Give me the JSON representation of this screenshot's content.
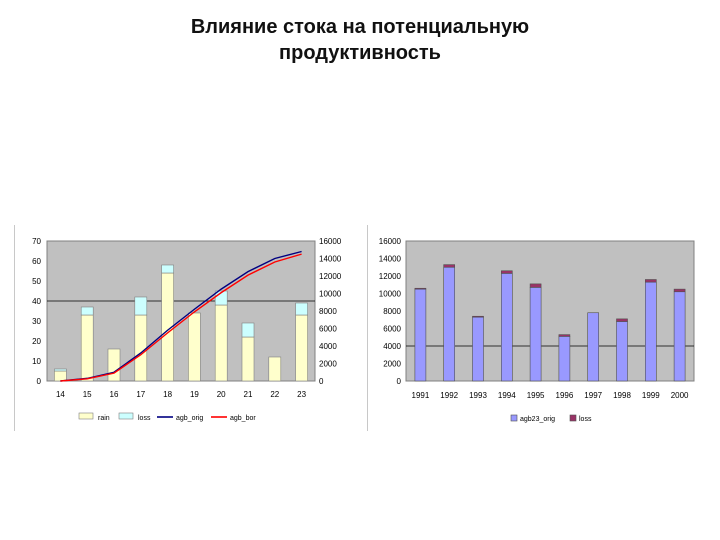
{
  "page": {
    "title_line1": "Влияние стока на потенциальную",
    "title_line2": "продуктивность"
  },
  "chart_data": [
    {
      "type": "bar",
      "subtype": "stacked bar + lines, dual y-axis",
      "categories": [
        "14",
        "15",
        "16",
        "17",
        "18",
        "19",
        "20",
        "21",
        "22",
        "23"
      ],
      "series": [
        {
          "name": "rain",
          "axis": "left",
          "kind": "stacked-bar",
          "color": "#ffffcc",
          "values": [
            5,
            33,
            16,
            33,
            54,
            34,
            38,
            22,
            12,
            33
          ]
        },
        {
          "name": "loss",
          "axis": "left",
          "kind": "stacked-bar",
          "color": "#ccffff",
          "values": [
            1,
            4,
            0,
            9,
            4,
            0,
            7,
            7,
            0,
            6
          ]
        },
        {
          "name": "agb_orig",
          "axis": "right",
          "kind": "line",
          "color": "#000080",
          "values": [
            0,
            300,
            1000,
            3200,
            5800,
            8200,
            10500,
            12500,
            14000,
            14800
          ]
        },
        {
          "name": "agb_bor",
          "axis": "right",
          "kind": "line",
          "color": "#ff0000",
          "values": [
            0,
            250,
            900,
            3000,
            5500,
            7900,
            10100,
            12100,
            13600,
            14500
          ]
        }
      ],
      "y_left": {
        "ticks": [
          "0",
          "10",
          "20",
          "30",
          "40",
          "50",
          "60",
          "70"
        ],
        "lim": [
          0,
          70
        ]
      },
      "y_right": {
        "ticks": [
          "0",
          "2000",
          "4000",
          "6000",
          "8000",
          "10000",
          "12000",
          "14000",
          "16000"
        ],
        "lim": [
          0,
          16000
        ]
      },
      "legend": {
        "placement": "bottom",
        "items": [
          "rain",
          "loss",
          "agb_orig",
          "agb_bor"
        ]
      },
      "plot_background": "#c0c0c0",
      "grid": "major horizontal at 40"
    },
    {
      "type": "bar",
      "subtype": "stacked bar",
      "categories": [
        "1991",
        "1992",
        "1993",
        "1994",
        "1995",
        "1996",
        "1997",
        "1998",
        "1999",
        "2000"
      ],
      "series": [
        {
          "name": "agb23_orig",
          "color": "#9999ff",
          "values": [
            10500,
            13000,
            7300,
            12300,
            10700,
            5100,
            7800,
            6800,
            11300,
            10200
          ]
        },
        {
          "name": "loss",
          "color": "#993366",
          "values": [
            100,
            300,
            100,
            300,
            400,
            200,
            0,
            300,
            300,
            300
          ]
        }
      ],
      "y": {
        "ticks": [
          "0",
          "2000",
          "4000",
          "6000",
          "8000",
          "10000",
          "12000",
          "14000",
          "16000"
        ],
        "lim": [
          0,
          16000
        ]
      },
      "legend": {
        "placement": "bottom",
        "items": [
          "agb23_orig",
          "loss"
        ]
      },
      "plot_background": "#c0c0c0",
      "grid": "major horizontal at 4000"
    }
  ]
}
